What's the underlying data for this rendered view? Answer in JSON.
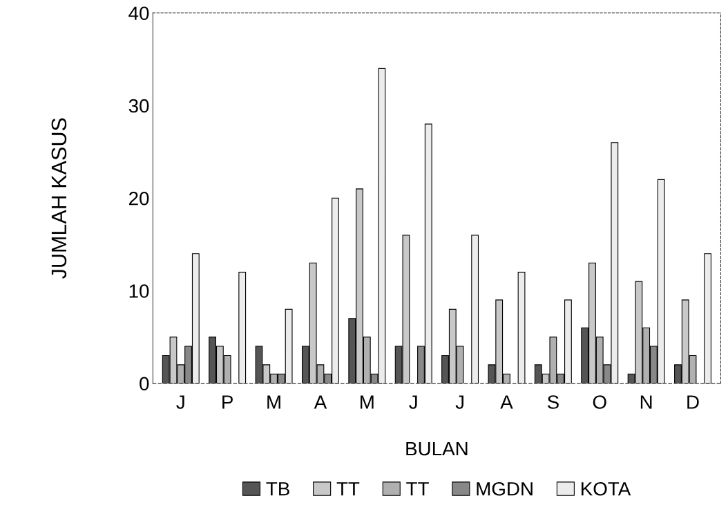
{
  "chart_data": {
    "type": "bar",
    "xlabel": "BULAN",
    "ylabel": "JUMLAH KASUS",
    "categories": [
      "J",
      "P",
      "M",
      "A",
      "M",
      "J",
      "J",
      "A",
      "S",
      "O",
      "N",
      "D"
    ],
    "series": [
      {
        "name": "TB",
        "color": "#555555",
        "values": [
          3,
          5,
          4,
          4,
          7,
          4,
          3,
          2,
          2,
          6,
          1,
          2
        ]
      },
      {
        "name": "TT",
        "color": "#c8c8c8",
        "values": [
          5,
          4,
          2,
          13,
          21,
          16,
          8,
          9,
          1,
          13,
          11,
          9
        ]
      },
      {
        "name": "TT",
        "color": "#b0b0b0",
        "values": [
          2,
          3,
          1,
          2,
          5,
          0,
          4,
          1,
          5,
          5,
          6,
          3
        ]
      },
      {
        "name": "MGDN",
        "color": "#888888",
        "values": [
          4,
          0,
          1,
          1,
          1,
          4,
          0,
          0,
          1,
          2,
          4,
          0
        ]
      },
      {
        "name": "KOTA",
        "color": "#ececec",
        "values": [
          14,
          12,
          8,
          20,
          34,
          28,
          16,
          12,
          9,
          26,
          22,
          14
        ]
      }
    ],
    "ylim": [
      0,
      40
    ],
    "yticks": [
      0,
      10,
      20,
      30,
      40
    ],
    "grid": false,
    "legend": "bottom"
  }
}
